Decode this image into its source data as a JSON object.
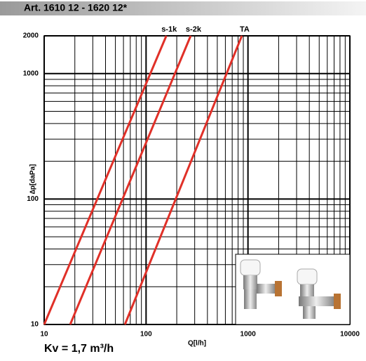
{
  "chart_data": {
    "type": "line",
    "title": "Art. 1610 12 - 1620 12*",
    "x_label": "Q[l/h]",
    "y_label": "∆p[daPa]",
    "annotation": "Kv =  1,7 m³/h",
    "log_x": true,
    "log_y": true,
    "grid": true,
    "xlim": [
      10,
      10000
    ],
    "ylim": [
      10,
      2000
    ],
    "xticks": [
      10,
      100,
      1000,
      10000
    ],
    "yticks": [
      10,
      100,
      1000,
      2000
    ],
    "minor_xticks": [
      20,
      30,
      40,
      50,
      60,
      70,
      80,
      90,
      200,
      300,
      400,
      500,
      600,
      700,
      800,
      900,
      2000,
      3000,
      4000,
      5000,
      6000,
      7000,
      8000,
      9000
    ],
    "minor_yticks": [
      20,
      30,
      40,
      50,
      60,
      70,
      80,
      90,
      200,
      300,
      400,
      500,
      600,
      700,
      800,
      900
    ],
    "series": [
      {
        "name": "s-1k",
        "color": "#e03028",
        "x": [
          10,
          158
        ],
        "values": [
          10,
          2000
        ]
      },
      {
        "name": "s-2k",
        "color": "#e03028",
        "x": [
          18,
          274
        ],
        "values": [
          10,
          2000
        ]
      },
      {
        "name": "TA",
        "color": "#e03028",
        "x": [
          62,
          871
        ],
        "values": [
          10,
          2000
        ]
      }
    ]
  }
}
